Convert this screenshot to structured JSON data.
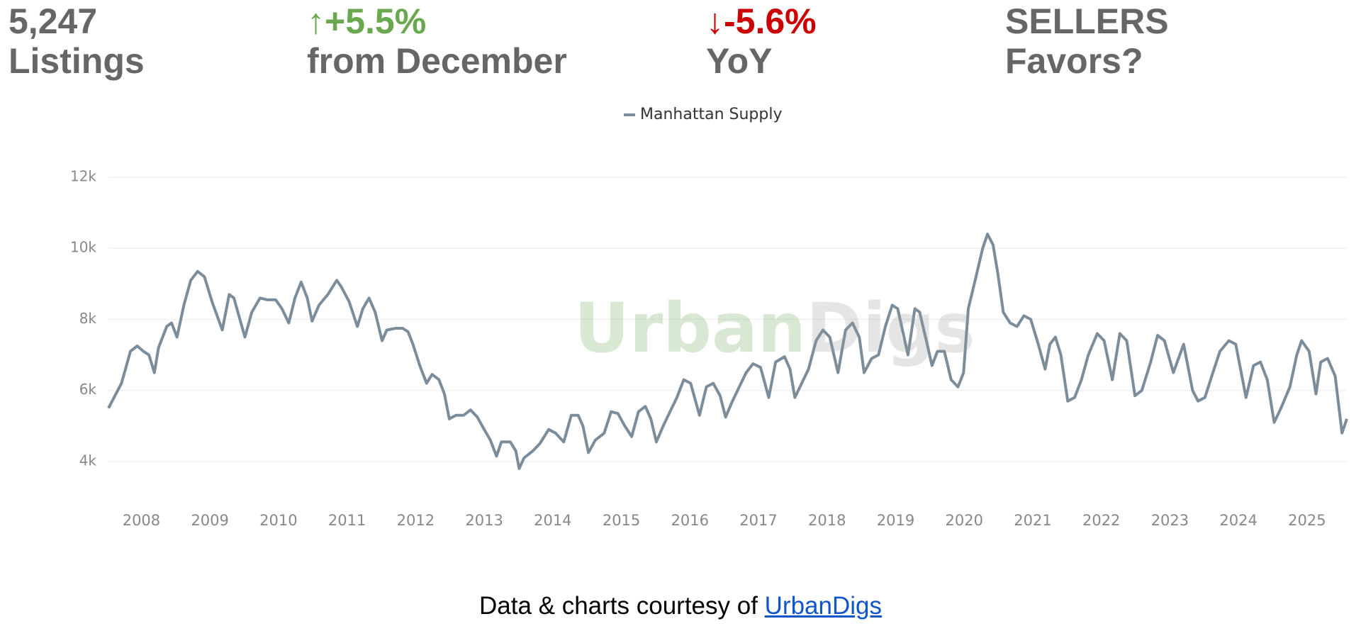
{
  "stats": [
    {
      "value": "5,247",
      "label": "Listings",
      "color": "#666666"
    },
    {
      "value": "↑+5.5%",
      "label": "from December",
      "color": "#6aa84f"
    },
    {
      "value": "↓-5.6%",
      "label": "YoY",
      "color": "#cc0000"
    },
    {
      "value": "SELLERS",
      "label": "Favors?",
      "color": "#666666"
    }
  ],
  "watermark": [
    "Urban",
    "Digs"
  ],
  "footer": {
    "text": "Data & charts courtesy of ",
    "link": "UrbanDigs"
  },
  "chart_data": {
    "type": "line",
    "x": [
      2007.52,
      2007.71,
      2007.84,
      2007.94,
      2008.03,
      2008.11,
      2008.19,
      2008.25,
      2008.37,
      2008.44,
      2008.52,
      2008.62,
      2008.72,
      2008.82,
      2008.92,
      2009.03,
      2009.18,
      2009.28,
      2009.35,
      2009.51,
      2009.61,
      2009.73,
      2009.84,
      2009.96,
      2010.05,
      2010.15,
      2010.24,
      2010.33,
      2010.42,
      2010.49,
      2010.59,
      2010.72,
      2010.85,
      2010.92,
      2011.03,
      2011.15,
      2011.23,
      2011.32,
      2011.41,
      2011.51,
      2011.58,
      2011.71,
      2011.81,
      2011.89,
      2011.96,
      2012.06,
      2012.16,
      2012.24,
      2012.34,
      2012.42,
      2012.49,
      2012.59,
      2012.7,
      2012.8,
      2012.9,
      2013.0,
      2013.09,
      2013.18,
      2013.25,
      2013.38,
      2013.46,
      2013.51,
      2013.58,
      2013.71,
      2013.81,
      2013.94,
      2014.04,
      2014.16,
      2014.27,
      2014.37,
      2014.44,
      2014.52,
      2014.62,
      2014.75,
      2014.85,
      2014.95,
      2015.05,
      2015.15,
      2015.25,
      2015.35,
      2015.43,
      2015.51,
      2015.61,
      2015.71,
      2015.81,
      2015.91,
      2016.01,
      2016.14,
      2016.24,
      2016.34,
      2016.44,
      2016.52,
      2016.62,
      2016.72,
      2016.82,
      2016.92,
      2017.03,
      2017.15,
      2017.25,
      2017.38,
      2017.46,
      2017.53,
      2017.63,
      2017.73,
      2017.84,
      2017.94,
      2018.04,
      2018.16,
      2018.27,
      2018.37,
      2018.47,
      2018.54,
      2018.65,
      2018.75,
      2018.85,
      2018.95,
      2019.03,
      2019.18,
      2019.28,
      2019.35,
      2019.46,
      2019.53,
      2019.61,
      2019.71,
      2019.81,
      2019.91,
      2019.99,
      2020.06,
      2020.16,
      2020.27,
      2020.34,
      2020.42,
      2020.49,
      2020.57,
      2020.67,
      2020.77,
      2020.87,
      2020.97,
      2021.08,
      2021.18,
      2021.25,
      2021.33,
      2021.41,
      2021.51,
      2021.61,
      2021.71,
      2021.81,
      2021.94,
      2022.04,
      2022.16,
      2022.27,
      2022.37,
      2022.49,
      2022.59,
      2022.72,
      2022.82,
      2022.92,
      2023.05,
      2023.2,
      2023.33,
      2023.41,
      2023.51,
      2023.61,
      2023.73,
      2023.86,
      2023.96,
      2024.11,
      2024.22,
      2024.32,
      2024.42,
      2024.52,
      2024.62,
      2024.75,
      2024.85,
      2024.92,
      2025.03,
      2025.13,
      2025.2,
      2025.3,
      2025.41,
      2025.51,
      2025.58
    ],
    "series": [
      {
        "name": "Manhattan Supply",
        "color": "#7b8d9b",
        "values": [
          5500,
          6200,
          7100,
          7250,
          7100,
          7000,
          6500,
          7200,
          7800,
          7900,
          7500,
          8400,
          9100,
          9350,
          9200,
          8500,
          7700,
          8700,
          8600,
          7500,
          8200,
          8600,
          8550,
          8550,
          8300,
          7900,
          8600,
          9050,
          8600,
          7950,
          8400,
          8700,
          9100,
          8900,
          8500,
          7800,
          8300,
          8600,
          8200,
          7400,
          7700,
          7750,
          7750,
          7650,
          7300,
          6700,
          6200,
          6450,
          6300,
          5900,
          5200,
          5300,
          5300,
          5450,
          5250,
          4900,
          4600,
          4150,
          4550,
          4550,
          4300,
          3800,
          4100,
          4300,
          4500,
          4900,
          4800,
          4550,
          5300,
          5300,
          5000,
          4250,
          4600,
          4800,
          5400,
          5350,
          5000,
          4700,
          5400,
          5550,
          5200,
          4550,
          5000,
          5400,
          5800,
          6300,
          6200,
          5300,
          6100,
          6200,
          5850,
          5250,
          5700,
          6100,
          6500,
          6750,
          6650,
          5800,
          6800,
          6950,
          6600,
          5800,
          6200,
          6600,
          7400,
          7700,
          7500,
          6500,
          7700,
          7900,
          7500,
          6500,
          6900,
          7000,
          7800,
          8400,
          8300,
          7000,
          8300,
          8200,
          7300,
          6700,
          7100,
          7100,
          6300,
          6100,
          6500,
          8300,
          9100,
          10000,
          10400,
          10100,
          9300,
          8200,
          7900,
          7800,
          8100,
          8000,
          7300,
          6600,
          7300,
          7500,
          7000,
          5700,
          5800,
          6300,
          7000,
          7600,
          7400,
          6300,
          7600,
          7400,
          5850,
          6000,
          6800,
          7550,
          7400,
          6500,
          7300,
          6000,
          5700,
          5800,
          6400,
          7100,
          7400,
          7300,
          5800,
          6700,
          6800,
          6300,
          5100,
          5500,
          6100,
          7000,
          7400,
          7100,
          5900,
          6800,
          6900,
          6400,
          4800,
          5200
        ]
      }
    ],
    "xlim": [
      2007.52,
      2025.58
    ],
    "xticks": [
      2008,
      2009,
      2010,
      2011,
      2012,
      2013,
      2014,
      2015,
      2016,
      2017,
      2018,
      2019,
      2020,
      2021,
      2022,
      2023,
      2024,
      2025
    ],
    "ylim": [
      3000,
      12000
    ],
    "yticks": [
      {
        "value": 4000,
        "label": "4k"
      },
      {
        "value": 6000,
        "label": "6k"
      },
      {
        "value": 8000,
        "label": "8k"
      },
      {
        "value": 10000,
        "label": "10k"
      },
      {
        "value": 12000,
        "label": "12k"
      }
    ],
    "grid": true,
    "legend": "top"
  }
}
